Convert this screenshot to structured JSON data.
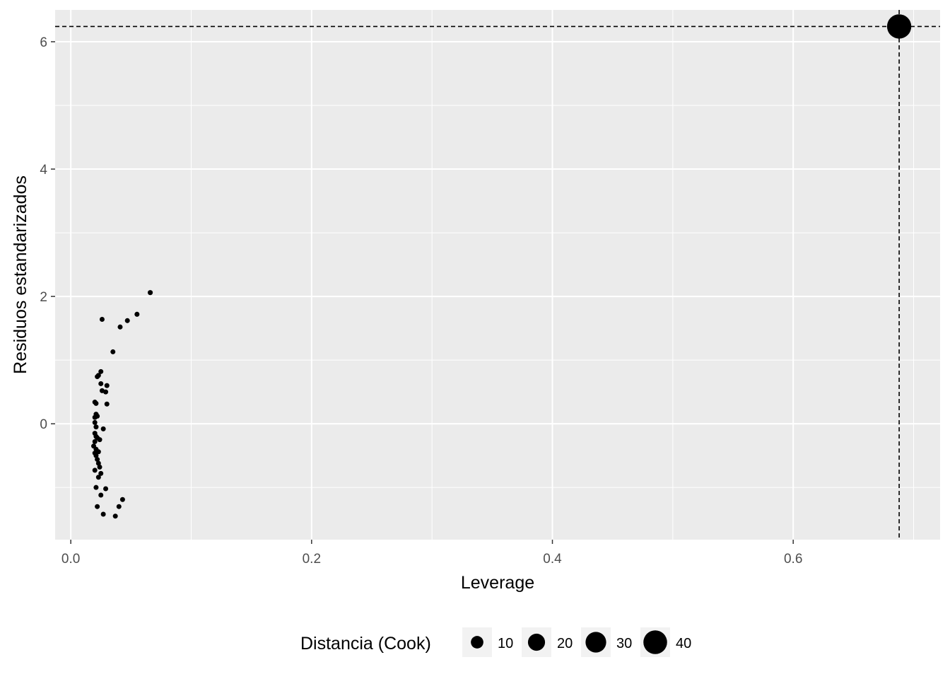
{
  "chart_data": {
    "type": "scatter",
    "xlabel": "Leverage",
    "ylabel": "Residuos estandarizados",
    "xlim": [
      -0.013,
      0.722
    ],
    "ylim": [
      -1.82,
      6.5
    ],
    "x_ticks": [
      0.0,
      0.2,
      0.4,
      0.6
    ],
    "x_tick_labels": [
      "0.0",
      "0.2",
      "0.4",
      "0.6"
    ],
    "y_ticks": [
      0,
      2,
      4,
      6
    ],
    "y_tick_labels": [
      "0",
      "2",
      "4",
      "6"
    ],
    "grid": true,
    "background": "#ebebeb",
    "point_color": "#000000",
    "reference_lines": {
      "x": 0.688,
      "y": 6.24,
      "style": "dashed"
    },
    "legend": {
      "title": "Distancia (Cook)",
      "position": "bottom",
      "items": [
        {
          "label": "10",
          "size": 10
        },
        {
          "label": "20",
          "size": 20
        },
        {
          "label": "30",
          "size": 30
        },
        {
          "label": "40",
          "size": 40
        }
      ]
    },
    "points": [
      {
        "x": 0.688,
        "y": 6.24,
        "size": 42
      },
      {
        "x": 0.066,
        "y": 2.06,
        "size": 0.3
      },
      {
        "x": 0.055,
        "y": 1.72,
        "size": 0.25
      },
      {
        "x": 0.047,
        "y": 1.62,
        "size": 0.22
      },
      {
        "x": 0.041,
        "y": 1.52,
        "size": 0.22
      },
      {
        "x": 0.026,
        "y": 1.64,
        "size": 0.1
      },
      {
        "x": 0.035,
        "y": 1.13,
        "size": 0.1
      },
      {
        "x": 0.025,
        "y": 0.82,
        "size": 0.1
      },
      {
        "x": 0.023,
        "y": 0.76,
        "size": 0.1
      },
      {
        "x": 0.022,
        "y": 0.74,
        "size": 0.1
      },
      {
        "x": 0.025,
        "y": 0.63,
        "size": 0.1
      },
      {
        "x": 0.03,
        "y": 0.6,
        "size": 0.1
      },
      {
        "x": 0.026,
        "y": 0.52,
        "size": 0.1
      },
      {
        "x": 0.029,
        "y": 0.5,
        "size": 0.1
      },
      {
        "x": 0.02,
        "y": 0.34,
        "size": 0.1
      },
      {
        "x": 0.021,
        "y": 0.32,
        "size": 0.1
      },
      {
        "x": 0.03,
        "y": 0.31,
        "size": 0.1
      },
      {
        "x": 0.021,
        "y": 0.15,
        "size": 0.1
      },
      {
        "x": 0.022,
        "y": 0.12,
        "size": 0.1
      },
      {
        "x": 0.02,
        "y": 0.1,
        "size": 0.1
      },
      {
        "x": 0.02,
        "y": 0.02,
        "size": 0.1
      },
      {
        "x": 0.021,
        "y": -0.05,
        "size": 0.1
      },
      {
        "x": 0.027,
        "y": -0.08,
        "size": 0.1
      },
      {
        "x": 0.02,
        "y": -0.15,
        "size": 0.1
      },
      {
        "x": 0.021,
        "y": -0.2,
        "size": 0.1
      },
      {
        "x": 0.022,
        "y": -0.22,
        "size": 0.1
      },
      {
        "x": 0.024,
        "y": -0.25,
        "size": 0.1
      },
      {
        "x": 0.02,
        "y": -0.28,
        "size": 0.1
      },
      {
        "x": 0.019,
        "y": -0.35,
        "size": 0.1
      },
      {
        "x": 0.021,
        "y": -0.4,
        "size": 0.1
      },
      {
        "x": 0.023,
        "y": -0.44,
        "size": 0.1
      },
      {
        "x": 0.02,
        "y": -0.46,
        "size": 0.1
      },
      {
        "x": 0.021,
        "y": -0.5,
        "size": 0.1
      },
      {
        "x": 0.022,
        "y": -0.56,
        "size": 0.1
      },
      {
        "x": 0.023,
        "y": -0.62,
        "size": 0.1
      },
      {
        "x": 0.024,
        "y": -0.68,
        "size": 0.1
      },
      {
        "x": 0.02,
        "y": -0.73,
        "size": 0.1
      },
      {
        "x": 0.025,
        "y": -0.78,
        "size": 0.1
      },
      {
        "x": 0.023,
        "y": -0.84,
        "size": 0.1
      },
      {
        "x": 0.021,
        "y": -1.0,
        "size": 0.1
      },
      {
        "x": 0.029,
        "y": -1.02,
        "size": 0.1
      },
      {
        "x": 0.025,
        "y": -1.12,
        "size": 0.1
      },
      {
        "x": 0.043,
        "y": -1.19,
        "size": 0.1
      },
      {
        "x": 0.04,
        "y": -1.3,
        "size": 0.1
      },
      {
        "x": 0.022,
        "y": -1.3,
        "size": 0.1
      },
      {
        "x": 0.027,
        "y": -1.42,
        "size": 0.1
      },
      {
        "x": 0.037,
        "y": -1.45,
        "size": 0.1
      }
    ]
  }
}
